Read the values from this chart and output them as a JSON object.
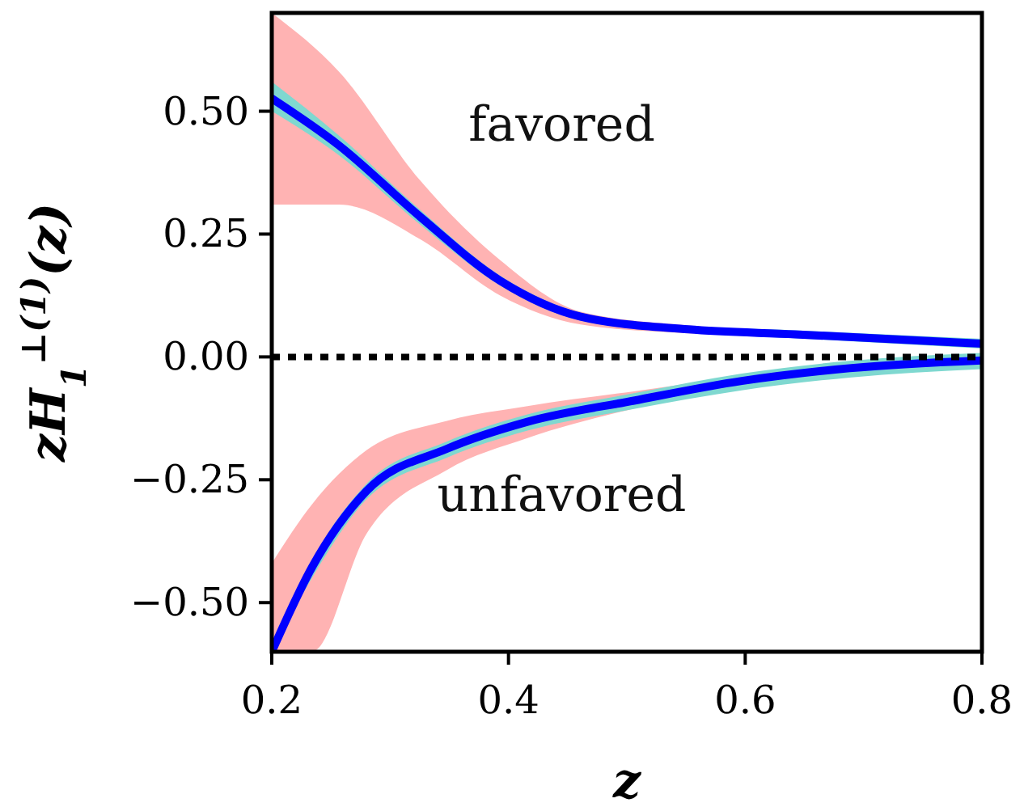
{
  "chart_data": {
    "type": "line",
    "xlabel": "z",
    "ylabel": "zH$_{1}$$^{⊥(1)}$(z)",
    "xlim": [
      0.2,
      0.8
    ],
    "ylim": [
      -0.6,
      0.7
    ],
    "xticks": [
      0.2,
      0.4,
      0.6,
      0.8
    ],
    "yticks": [
      {
        "value": -0.5,
        "label": "−0.50"
      },
      {
        "value": -0.25,
        "label": "−0.25"
      },
      {
        "value": 0,
        "label": "0.00"
      },
      {
        "value": 0.25,
        "label": "0.25"
      },
      {
        "value": 0.5,
        "label": "0.50"
      }
    ],
    "ref_lines": [
      {
        "axis": "y",
        "value": 0,
        "color": "#000000",
        "line_style": "dotted"
      }
    ],
    "annotations": [
      "favored",
      "unfavored"
    ],
    "series": [
      {
        "color": "#0000ff",
        "x": [
          0.2,
          0.257,
          0.325,
          0.393,
          0.461,
          0.552,
          0.642,
          0.8
        ],
        "values": [
          0.526,
          0.43,
          0.286,
          0.155,
          0.082,
          0.056,
          0.046,
          0.027
        ],
        "lower": [
          0.31,
          0.31,
          0.24,
          0.125,
          0.066,
          0.048,
          0.04,
          0.022
        ],
        "upper": [
          0.7,
          0.58,
          0.36,
          0.197,
          0.092,
          0.064,
          0.052,
          0.032
        ]
      },
      {
        "color": "#0000ff",
        "x": [
          0.2,
          0.234,
          0.28,
          0.348,
          0.416,
          0.506,
          0.597,
          0.688,
          0.8
        ],
        "values": [
          -0.6,
          -0.428,
          -0.273,
          -0.187,
          -0.132,
          -0.089,
          -0.049,
          -0.023,
          -0.007
        ],
        "lower": [
          -0.6,
          -0.6,
          -0.36,
          -0.23,
          -0.165,
          -0.105,
          -0.06,
          -0.03,
          -0.012
        ],
        "upper": [
          -0.42,
          -0.3,
          -0.19,
          -0.13,
          -0.1,
          -0.07,
          -0.04,
          -0.016,
          -0.003
        ]
      },
      {
        "color": "#7fd8d0",
        "x": [
          0.2,
          0.257,
          0.325,
          0.393,
          0.461,
          0.552,
          0.642,
          0.8
        ],
        "values": [
          null,
          null,
          null,
          null,
          null,
          null,
          null,
          null
        ],
        "lower": [
          0.5,
          0.41,
          0.27,
          0.145,
          0.074,
          0.049,
          0.038,
          0.017
        ],
        "upper": [
          0.56,
          0.45,
          0.3,
          0.165,
          0.09,
          0.063,
          0.054,
          0.037
        ]
      },
      {
        "color": "#7fd8d0",
        "x": [
          0.2,
          0.234,
          0.28,
          0.348,
          0.416,
          0.506,
          0.597,
          0.688,
          0.8
        ],
        "values": [
          null,
          null,
          null,
          null,
          null,
          null,
          null,
          null,
          null
        ],
        "lower": [
          -0.6,
          -0.45,
          -0.29,
          -0.205,
          -0.15,
          -0.106,
          -0.068,
          -0.042,
          -0.025
        ],
        "upper": [
          -0.585,
          -0.413,
          -0.258,
          -0.172,
          -0.117,
          -0.074,
          -0.034,
          -0.008,
          0.008
        ]
      }
    ]
  }
}
